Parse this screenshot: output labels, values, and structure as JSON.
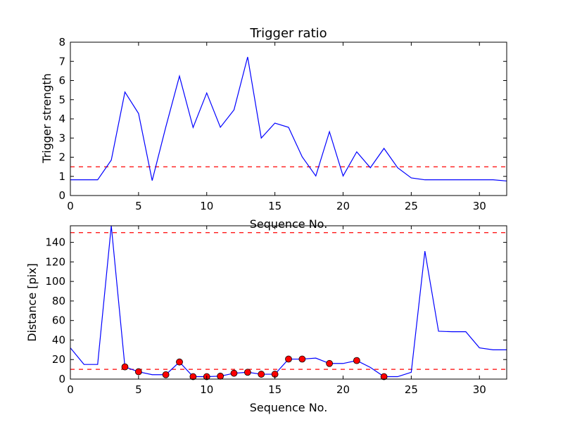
{
  "chart_data": [
    {
      "type": "line",
      "title": "Trigger ratio",
      "xlabel": "Sequence No.",
      "ylabel": "Trigger strength",
      "xlim": [
        0,
        32
      ],
      "ylim": [
        0,
        8
      ],
      "xticks": [
        0,
        5,
        10,
        15,
        20,
        25,
        30
      ],
      "yticks": [
        0,
        1,
        2,
        3,
        4,
        5,
        6,
        7,
        8
      ],
      "series": [
        {
          "color": "#0000ff",
          "x": [
            0,
            1,
            2,
            3,
            4,
            5,
            6,
            7,
            8,
            9,
            10,
            11,
            12,
            13,
            14,
            15,
            16,
            17,
            18,
            19,
            20,
            21,
            22,
            23,
            24,
            25,
            26,
            27,
            28,
            29,
            30,
            31,
            32
          ],
          "y": [
            0.82,
            0.82,
            0.82,
            1.85,
            5.4,
            4.28,
            0.78,
            3.58,
            6.23,
            3.55,
            5.35,
            3.56,
            4.47,
            7.23,
            3.0,
            3.78,
            3.56,
            2.02,
            1.02,
            3.33,
            1.02,
            2.28,
            1.45,
            2.46,
            1.45,
            0.92,
            0.82,
            0.82,
            0.82,
            0.82,
            0.82,
            0.82,
            0.76
          ]
        }
      ],
      "threshold": {
        "y": 1.5,
        "color": "#ff0000",
        "style": "dashed"
      },
      "grid": false
    },
    {
      "type": "line",
      "title": "",
      "xlabel": "Sequence No.",
      "ylabel": "Distance [pix]",
      "xlim": [
        0,
        32
      ],
      "ylim": [
        0,
        157
      ],
      "xticks": [
        0,
        5,
        10,
        15,
        20,
        25,
        30
      ],
      "yticks": [
        0,
        20,
        40,
        60,
        80,
        100,
        120,
        140
      ],
      "series": [
        {
          "color": "#0000ff",
          "x": [
            0,
            1,
            2,
            3,
            4,
            5,
            6,
            7,
            8,
            9,
            10,
            11,
            12,
            13,
            14,
            15,
            16,
            17,
            18,
            19,
            20,
            21,
            22,
            23,
            24,
            25,
            26,
            27,
            28,
            29,
            30,
            31,
            32
          ],
          "y": [
            32,
            15,
            15,
            157,
            12.5,
            7.5,
            4.5,
            4.5,
            17.5,
            2.5,
            2.5,
            3,
            6,
            7,
            5,
            5,
            20.5,
            20.5,
            21.5,
            16,
            16,
            19,
            12,
            2.5,
            2.5,
            7,
            131,
            49,
            48.5,
            48.5,
            32,
            30,
            30
          ]
        }
      ],
      "markers": {
        "color": "#ff0000",
        "x": [
          4,
          5,
          7,
          8,
          9,
          10,
          11,
          12,
          13,
          14,
          15,
          16,
          17,
          19,
          21,
          23
        ],
        "y": [
          12.5,
          7.5,
          4.5,
          17.5,
          2.5,
          2.5,
          3,
          6,
          7,
          5,
          5,
          20.5,
          20.5,
          16,
          19,
          2.5
        ]
      },
      "thresholds": [
        {
          "y": 150,
          "color": "#ff0000",
          "style": "dashed"
        },
        {
          "y": 10,
          "color": "#ff0000",
          "style": "dashed"
        }
      ],
      "grid": false
    }
  ]
}
